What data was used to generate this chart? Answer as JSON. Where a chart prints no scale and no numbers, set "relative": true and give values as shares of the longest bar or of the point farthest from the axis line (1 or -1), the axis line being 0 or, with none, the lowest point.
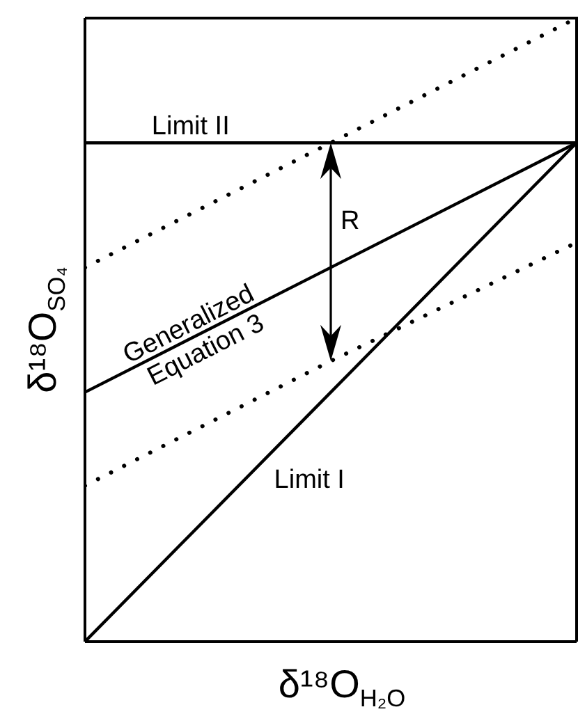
{
  "chart_data": {
    "type": "line",
    "relative": true,
    "xlabel": "δ¹⁸O$_{H₂O}$",
    "ylabel": "δ¹⁸O$_{SO₄}$",
    "categories": [
      null,
      null,
      null
    ],
    "line_style": "solid",
    "marker": "none",
    "series": [
      {
        "name": "Limit II",
        "color": "#000000",
        "values": [
          0.8,
          0.8,
          0.8
        ]
      },
      {
        "name": "Generalized Equation 3",
        "color": "#000000",
        "values": [
          0.4,
          0.6,
          0.8
        ]
      },
      {
        "name": "Limit I",
        "color": "#000000",
        "values": [
          0,
          0.4,
          0.8
        ]
      },
      {
        "color": "#000000",
        "values": [
          0.6,
          0.8,
          1.0
        ],
        "line_style": "dotted"
      },
      {
        "color": "#000000",
        "values": [
          0.25,
          0.45,
          0.64
        ],
        "line_style": "dotted"
      }
    ],
    "annotations": [
      "R"
    ]
  }
}
